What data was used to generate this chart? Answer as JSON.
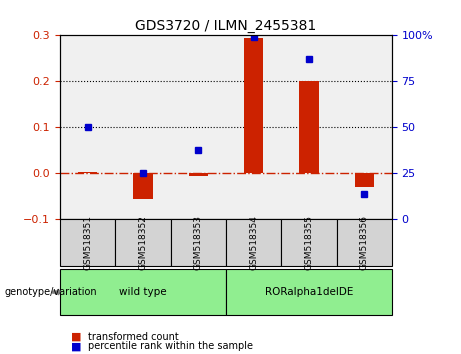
{
  "title": "GDS3720 / ILMN_2455381",
  "samples": [
    "GSM518351",
    "GSM518352",
    "GSM518353",
    "GSM518354",
    "GSM518355",
    "GSM518356"
  ],
  "transformed_count": [
    0.003,
    -0.055,
    -0.005,
    0.295,
    0.2,
    -0.03
  ],
  "percentile_rank": [
    50,
    25,
    38,
    99,
    87,
    14
  ],
  "bar_color": "#cc2200",
  "dot_color": "#0000cc",
  "left_ylim": [
    -0.1,
    0.3
  ],
  "right_ylim": [
    0,
    100
  ],
  "left_yticks": [
    -0.1,
    0.0,
    0.1,
    0.2,
    0.3
  ],
  "right_yticks": [
    0,
    25,
    50,
    75,
    100
  ],
  "right_yticklabels": [
    "0",
    "25",
    "50",
    "75",
    "100%"
  ],
  "dotted_lines": [
    0.1,
    0.2
  ],
  "background_color": "#ffffff",
  "plot_bg_color": "#f0f0f0",
  "genotype_label": "genotype/variation",
  "groups": [
    {
      "label": "wild type",
      "start": 0,
      "end": 3,
      "color": "#90ee90"
    },
    {
      "label": "RORalpha1delDE",
      "start": 3,
      "end": 6,
      "color": "#90ee90"
    }
  ],
  "legend_items": [
    {
      "label": "transformed count",
      "color": "#cc2200"
    },
    {
      "label": "percentile rank within the sample",
      "color": "#0000cc"
    }
  ]
}
